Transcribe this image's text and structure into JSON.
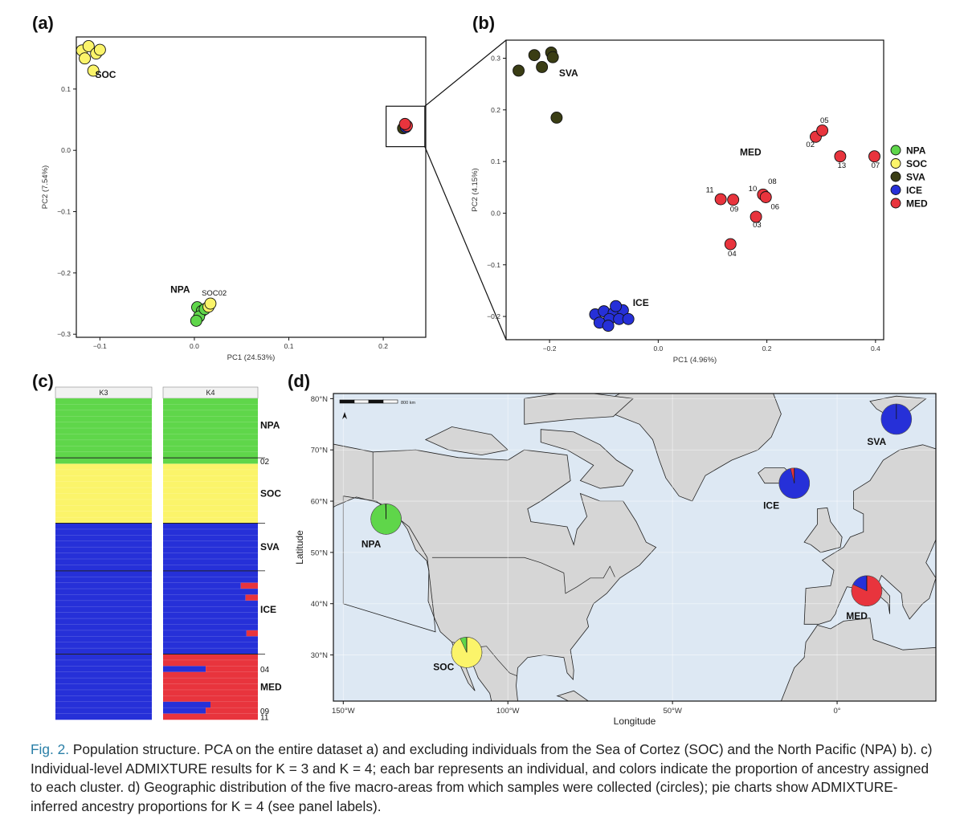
{
  "panel_labels": {
    "a": "(a)",
    "b": "(b)",
    "c": "(c)",
    "d": "(d)"
  },
  "legend": [
    {
      "name": "NPA",
      "color": "#5fd64a"
    },
    {
      "name": "SOC",
      "color": "#fbf46a"
    },
    {
      "name": "SVA",
      "color": "#3a3d14"
    },
    {
      "name": "ICE",
      "color": "#2630d8"
    },
    {
      "name": "MED",
      "color": "#e8343d"
    }
  ],
  "colors": {
    "NPA": "#5fd64a",
    "SOC": "#fbf46a",
    "SVA": "#3a3d14",
    "ICE": "#2630d8",
    "MED": "#e8343d",
    "ocean": "#dde8f3",
    "land": "#d6d6d6"
  },
  "chart_data": [
    {
      "id": "pca_a",
      "type": "scatter",
      "xlabel": "PC1 (24.53%)",
      "ylabel": "PC2 (7.54%)",
      "xlim": [
        -0.125,
        0.245
      ],
      "ylim": [
        -0.305,
        0.185
      ],
      "xticks": [
        {
          "v": -0.1,
          "label": "−0.1"
        },
        {
          "v": 0.0,
          "label": "0.0"
        },
        {
          "v": 0.1,
          "label": "0.1"
        },
        {
          "v": 0.2,
          "label": "0.2"
        }
      ],
      "yticks": [
        {
          "v": 0.1,
          "label": "0.1"
        },
        {
          "v": 0.0,
          "label": "0.0"
        },
        {
          "v": -0.1,
          "label": "−0.1"
        },
        {
          "v": -0.2,
          "label": "−0.2"
        },
        {
          "v": -0.3,
          "label": "−0.3"
        }
      ],
      "points": [
        {
          "x": -0.119,
          "y": 0.163,
          "g": "SOC"
        },
        {
          "x": -0.112,
          "y": 0.17,
          "g": "SOC"
        },
        {
          "x": -0.104,
          "y": 0.158,
          "g": "SOC"
        },
        {
          "x": -0.1,
          "y": 0.164,
          "g": "SOC"
        },
        {
          "x": -0.116,
          "y": 0.15,
          "g": "SOC"
        },
        {
          "x": -0.107,
          "y": 0.13,
          "g": "SOC"
        },
        {
          "x": 0.003,
          "y": -0.256,
          "g": "NPA"
        },
        {
          "x": 0.008,
          "y": -0.262,
          "g": "NPA"
        },
        {
          "x": 0.005,
          "y": -0.271,
          "g": "NPA"
        },
        {
          "x": 0.011,
          "y": -0.259,
          "g": "NPA"
        },
        {
          "x": 0.002,
          "y": -0.278,
          "g": "NPA"
        },
        {
          "x": 0.015,
          "y": -0.255,
          "g": "SOC"
        },
        {
          "x": 0.017,
          "y": -0.25,
          "g": "SOC"
        },
        {
          "x": 0.221,
          "y": 0.036,
          "g": "SVA"
        },
        {
          "x": 0.224,
          "y": 0.038,
          "g": "ICE"
        },
        {
          "x": 0.225,
          "y": 0.04,
          "g": "MED"
        },
        {
          "x": 0.223,
          "y": 0.043,
          "g": "MED"
        }
      ],
      "annotations": [
        {
          "text": "SOC",
          "x": -0.094,
          "y": 0.118,
          "bold": true
        },
        {
          "text": "NPA",
          "x": -0.015,
          "y": -0.232,
          "bold": true
        },
        {
          "text": "SOC02",
          "x": 0.021,
          "y": -0.237,
          "bold": false
        }
      ]
    },
    {
      "id": "pca_b",
      "type": "scatter",
      "xlabel": "PC1 (4.96%)",
      "ylabel": "PC2 (4.15%)",
      "xlim": [
        -0.28,
        0.415
      ],
      "ylim": [
        -0.245,
        0.335
      ],
      "xticks": [
        {
          "v": -0.2,
          "label": "−0.2"
        },
        {
          "v": 0.0,
          "label": "0.0"
        },
        {
          "v": 0.2,
          "label": "0.2"
        },
        {
          "v": 0.4,
          "label": "0.4"
        }
      ],
      "yticks": [
        {
          "v": 0.3,
          "label": "0.3"
        },
        {
          "v": 0.2,
          "label": "0.2"
        },
        {
          "v": 0.1,
          "label": "0.1"
        },
        {
          "v": 0.0,
          "label": "0.0"
        },
        {
          "v": -0.1,
          "label": "−0.1"
        },
        {
          "v": -0.2,
          "label": "−0.2"
        }
      ],
      "points": [
        {
          "x": -0.228,
          "y": 0.306,
          "g": "SVA"
        },
        {
          "x": -0.197,
          "y": 0.311,
          "g": "SVA"
        },
        {
          "x": -0.194,
          "y": 0.302,
          "g": "SVA"
        },
        {
          "x": -0.257,
          "y": 0.276,
          "g": "SVA"
        },
        {
          "x": -0.214,
          "y": 0.283,
          "g": "SVA"
        },
        {
          "x": -0.187,
          "y": 0.185,
          "g": "SVA"
        },
        {
          "x": -0.116,
          "y": -0.196,
          "g": "ICE"
        },
        {
          "x": -0.1,
          "y": -0.19,
          "g": "ICE"
        },
        {
          "x": -0.082,
          "y": -0.193,
          "g": "ICE"
        },
        {
          "x": -0.065,
          "y": -0.188,
          "g": "ICE"
        },
        {
          "x": -0.09,
          "y": -0.205,
          "g": "ICE"
        },
        {
          "x": -0.072,
          "y": -0.205,
          "g": "ICE"
        },
        {
          "x": -0.108,
          "y": -0.212,
          "g": "ICE"
        },
        {
          "x": -0.055,
          "y": -0.205,
          "g": "ICE"
        },
        {
          "x": -0.078,
          "y": -0.18,
          "g": "ICE"
        },
        {
          "x": -0.092,
          "y": -0.218,
          "g": "ICE"
        },
        {
          "x": 0.29,
          "y": 0.148,
          "g": "MED"
        },
        {
          "x": 0.302,
          "y": 0.16,
          "g": "MED"
        },
        {
          "x": 0.335,
          "y": 0.11,
          "g": "MED"
        },
        {
          "x": 0.398,
          "y": 0.11,
          "g": "MED"
        },
        {
          "x": 0.115,
          "y": 0.027,
          "g": "MED"
        },
        {
          "x": 0.138,
          "y": 0.026,
          "g": "MED"
        },
        {
          "x": 0.193,
          "y": 0.036,
          "g": "MED"
        },
        {
          "x": 0.198,
          "y": 0.031,
          "g": "MED"
        },
        {
          "x": 0.18,
          "y": -0.007,
          "g": "MED"
        },
        {
          "x": 0.133,
          "y": -0.06,
          "g": "MED"
        }
      ],
      "annotations": [
        {
          "text": "SVA",
          "x": -0.165,
          "y": 0.265,
          "bold": true
        },
        {
          "text": "ICE",
          "x": -0.032,
          "y": -0.18,
          "bold": true
        },
        {
          "text": "MED",
          "x": 0.17,
          "y": 0.112,
          "bold": true
        },
        {
          "text": "05",
          "x": 0.306,
          "y": 0.175,
          "bold": false
        },
        {
          "text": "02",
          "x": 0.28,
          "y": 0.128,
          "bold": false
        },
        {
          "text": "13",
          "x": 0.338,
          "y": 0.088,
          "bold": false
        },
        {
          "text": "07",
          "x": 0.4,
          "y": 0.088,
          "bold": false
        },
        {
          "text": "11",
          "x": 0.095,
          "y": 0.04,
          "bold": false
        },
        {
          "text": "09",
          "x": 0.14,
          "y": 0.003,
          "bold": false
        },
        {
          "text": "10",
          "x": 0.174,
          "y": 0.043,
          "bold": false
        },
        {
          "text": "08",
          "x": 0.21,
          "y": 0.057,
          "bold": false
        },
        {
          "text": "06",
          "x": 0.215,
          "y": 0.008,
          "bold": false
        },
        {
          "text": "03",
          "x": 0.182,
          "y": -0.027,
          "bold": false
        },
        {
          "text": "04",
          "x": 0.136,
          "y": -0.083,
          "bold": false
        }
      ]
    },
    {
      "id": "admixture_c",
      "type": "bar",
      "column_labels": [
        "K3",
        "K4"
      ],
      "group_labels": [
        {
          "text": "NPA",
          "bold": true,
          "row": 4.5
        },
        {
          "text": "02",
          "bold": false,
          "row": 10.5
        },
        {
          "text": "SOC",
          "bold": true,
          "row": 16
        },
        {
          "text": "SVA",
          "bold": true,
          "row": 25
        },
        {
          "text": "ICE",
          "bold": true,
          "row": 35.5
        },
        {
          "text": "04",
          "bold": false,
          "row": 45.5
        },
        {
          "text": "MED",
          "bold": true,
          "row": 48.5
        },
        {
          "text": "09",
          "bold": false,
          "row": 52.5
        },
        {
          "text": "11",
          "bold": false,
          "row": 53.5
        }
      ],
      "separators_after_row": [
        9,
        20,
        28,
        42
      ],
      "K3_rows": [
        [
          1,
          0,
          0
        ],
        [
          1,
          0,
          0
        ],
        [
          1,
          0,
          0
        ],
        [
          1,
          0,
          0
        ],
        [
          1,
          0,
          0
        ],
        [
          1,
          0,
          0
        ],
        [
          1,
          0,
          0
        ],
        [
          1,
          0,
          0
        ],
        [
          1,
          0,
          0
        ],
        [
          1,
          0,
          0
        ],
        [
          1,
          0,
          0
        ],
        [
          0,
          1,
          0
        ],
        [
          0,
          1,
          0
        ],
        [
          0,
          1,
          0
        ],
        [
          0,
          1,
          0
        ],
        [
          0,
          1,
          0
        ],
        [
          0,
          1,
          0
        ],
        [
          0,
          1,
          0
        ],
        [
          0,
          1,
          0
        ],
        [
          0,
          1,
          0
        ],
        [
          0,
          1,
          0
        ],
        [
          0,
          0,
          1
        ],
        [
          0,
          0,
          1
        ],
        [
          0,
          0,
          1
        ],
        [
          0,
          0,
          1
        ],
        [
          0,
          0,
          1
        ],
        [
          0,
          0,
          1
        ],
        [
          0,
          0,
          1
        ],
        [
          0,
          0,
          1
        ],
        [
          0,
          0,
          1
        ],
        [
          0,
          0,
          1
        ],
        [
          0,
          0,
          1
        ],
        [
          0,
          0,
          1
        ],
        [
          0,
          0,
          1
        ],
        [
          0,
          0,
          1
        ],
        [
          0,
          0,
          1
        ],
        [
          0,
          0,
          1
        ],
        [
          0,
          0,
          1
        ],
        [
          0,
          0,
          1
        ],
        [
          0,
          0,
          1
        ],
        [
          0,
          0,
          1
        ],
        [
          0,
          0,
          1
        ],
        [
          0,
          0,
          1
        ],
        [
          0,
          0,
          1
        ],
        [
          0,
          0,
          1
        ],
        [
          0,
          0,
          1
        ],
        [
          0,
          0,
          1
        ],
        [
          0,
          0,
          1
        ],
        [
          0,
          0,
          1
        ],
        [
          0,
          0,
          1
        ],
        [
          0,
          0,
          1
        ],
        [
          0,
          0,
          1
        ],
        [
          0,
          0,
          1
        ],
        [
          0,
          0,
          1
        ]
      ],
      "K4_rows": [
        [
          1,
          0,
          0,
          0
        ],
        [
          1,
          0,
          0,
          0
        ],
        [
          1,
          0,
          0,
          0
        ],
        [
          1,
          0,
          0,
          0
        ],
        [
          1,
          0,
          0,
          0
        ],
        [
          1,
          0,
          0,
          0
        ],
        [
          1,
          0,
          0,
          0
        ],
        [
          1,
          0,
          0,
          0
        ],
        [
          1,
          0,
          0,
          0
        ],
        [
          1,
          0,
          0,
          0
        ],
        [
          1,
          0,
          0,
          0
        ],
        [
          0,
          1,
          0,
          0
        ],
        [
          0,
          1,
          0,
          0
        ],
        [
          0,
          1,
          0,
          0
        ],
        [
          0,
          1,
          0,
          0
        ],
        [
          0,
          1,
          0,
          0
        ],
        [
          0,
          1,
          0,
          0
        ],
        [
          0,
          1,
          0,
          0
        ],
        [
          0,
          1,
          0,
          0
        ],
        [
          0,
          1,
          0,
          0
        ],
        [
          0,
          1,
          0,
          0
        ],
        [
          0,
          0,
          1,
          0
        ],
        [
          0,
          0,
          1,
          0
        ],
        [
          0,
          0,
          1,
          0
        ],
        [
          0,
          0,
          1,
          0
        ],
        [
          0,
          0,
          1,
          0
        ],
        [
          0,
          0,
          1,
          0
        ],
        [
          0,
          0,
          1,
          0
        ],
        [
          0,
          0,
          1,
          0
        ],
        [
          0,
          0,
          1,
          0
        ],
        [
          0,
          0,
          1,
          0
        ],
        [
          0,
          0,
          0.82,
          0.18
        ],
        [
          0,
          0,
          1,
          0
        ],
        [
          0,
          0,
          0.87,
          0.13
        ],
        [
          0,
          0,
          1,
          0
        ],
        [
          0,
          0,
          1,
          0
        ],
        [
          0,
          0,
          1,
          0
        ],
        [
          0,
          0,
          1,
          0
        ],
        [
          0,
          0,
          1,
          0
        ],
        [
          0,
          0,
          0.88,
          0.12
        ],
        [
          0,
          0,
          1,
          0
        ],
        [
          0,
          0,
          1,
          0
        ],
        [
          0,
          0,
          1,
          0
        ],
        [
          0,
          0,
          0,
          1
        ],
        [
          0,
          0,
          0,
          1
        ],
        [
          0,
          0,
          0.45,
          0.55
        ],
        [
          0,
          0,
          0,
          1
        ],
        [
          0,
          0,
          0,
          1
        ],
        [
          0,
          0,
          0,
          1
        ],
        [
          0,
          0,
          0,
          1
        ],
        [
          0,
          0,
          0,
          1
        ],
        [
          0,
          0,
          0.5,
          0.5
        ],
        [
          0,
          0,
          0.45,
          0.55
        ],
        [
          0,
          0,
          0,
          1
        ]
      ],
      "K3_colors": [
        "#5fd64a",
        "#fbf46a",
        "#2630d8"
      ],
      "K4_colors": [
        "#5fd64a",
        "#fbf46a",
        "#2630d8",
        "#e8343d"
      ]
    },
    {
      "id": "map_d",
      "type": "pie",
      "xlabel": "Longitude",
      "ylabel": "Latitude",
      "xlim": [
        -153,
        30
      ],
      "ylim": [
        21,
        81
      ],
      "xticks": [
        {
          "v": -150,
          "label": "150°W"
        },
        {
          "v": -100,
          "label": "100°W"
        },
        {
          "v": -50,
          "label": "50°W"
        },
        {
          "v": 0,
          "label": "0°"
        }
      ],
      "yticks": [
        {
          "v": 80,
          "label": "80°N"
        },
        {
          "v": 70,
          "label": "70°N"
        },
        {
          "v": 60,
          "label": "60°N"
        },
        {
          "v": 50,
          "label": "50°N"
        },
        {
          "v": 40,
          "label": "40°N"
        },
        {
          "v": 30,
          "label": "30°N"
        }
      ],
      "scale_label": "800 km",
      "pies": [
        {
          "name": "NPA",
          "lon": -137,
          "lat": 56.5,
          "label_lon": -141.5,
          "label_lat": 51,
          "slices": [
            {
              "g": "NPA",
              "v": 0.995
            },
            {
              "g": "SOC",
              "v": 0.005
            }
          ]
        },
        {
          "name": "SOC",
          "lon": -112.5,
          "lat": 30.5,
          "label_lon": -119.5,
          "label_lat": 27,
          "slices": [
            {
              "g": "SOC",
              "v": 0.93
            },
            {
              "g": "NPA",
              "v": 0.07
            }
          ]
        },
        {
          "name": "SVA",
          "lon": 18,
          "lat": 76,
          "label_lon": 12,
          "label_lat": 71,
          "slices": [
            {
              "g": "ICE",
              "v": 1.0
            }
          ]
        },
        {
          "name": "ICE",
          "lon": -13,
          "lat": 63.5,
          "label_lon": -20,
          "label_lat": 58.5,
          "slices": [
            {
              "g": "ICE",
              "v": 0.96
            },
            {
              "g": "MED",
              "v": 0.04
            }
          ]
        },
        {
          "name": "MED",
          "lon": 9,
          "lat": 42.5,
          "label_lon": 6,
          "label_lat": 37,
          "slices": [
            {
              "g": "MED",
              "v": 0.82
            },
            {
              "g": "ICE",
              "v": 0.18
            }
          ]
        }
      ]
    }
  ],
  "caption": {
    "lead": "Fig. 2.",
    "text": "Population structure. PCA on the entire dataset a) and excluding individuals from the Sea of Cortez (SOC) and the North Pacific (NPA) b). c) Individual-level ADMIXTURE results for K = 3 and K = 4; each bar represents an individual, and colors indicate the proportion of ancestry assigned to each cluster. d) Geographic distribution of the five macro-areas from which samples were collected (circles); pie charts show ADMIXTURE-inferred ancestry proportions for K = 4 (see panel labels)."
  }
}
